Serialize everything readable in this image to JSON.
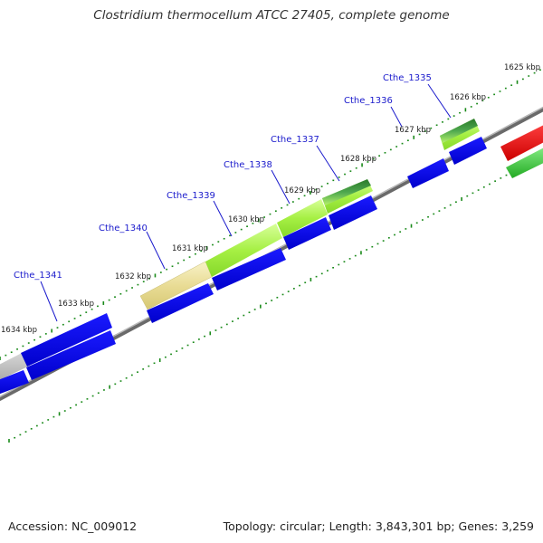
{
  "title": "Clostridium thermocellum ATCC 27405, complete genome",
  "footer": {
    "accession": "Accession: NC_009012",
    "summary": "Topology: circular; Length: 3,843,301 bp; Genes: 3,259"
  },
  "kbp_labels": [
    "1625 kbp",
    "1626 kbp",
    "1627 kbp",
    "1628 kbp",
    "1629 kbp",
    "1630 kbp",
    "1631 kbp",
    "1632 kbp",
    "1633 kbp",
    "1634 kbp"
  ],
  "gene_labels": [
    "Cthe_1335",
    "Cthe_1336",
    "Cthe_1337",
    "Cthe_1338",
    "Cthe_1339",
    "Cthe_1340",
    "Cthe_1341"
  ],
  "colors": {
    "cds": "#0000ee",
    "tick": "#1a8a1a",
    "backbone": "#888888",
    "label": "#1a1acc"
  }
}
